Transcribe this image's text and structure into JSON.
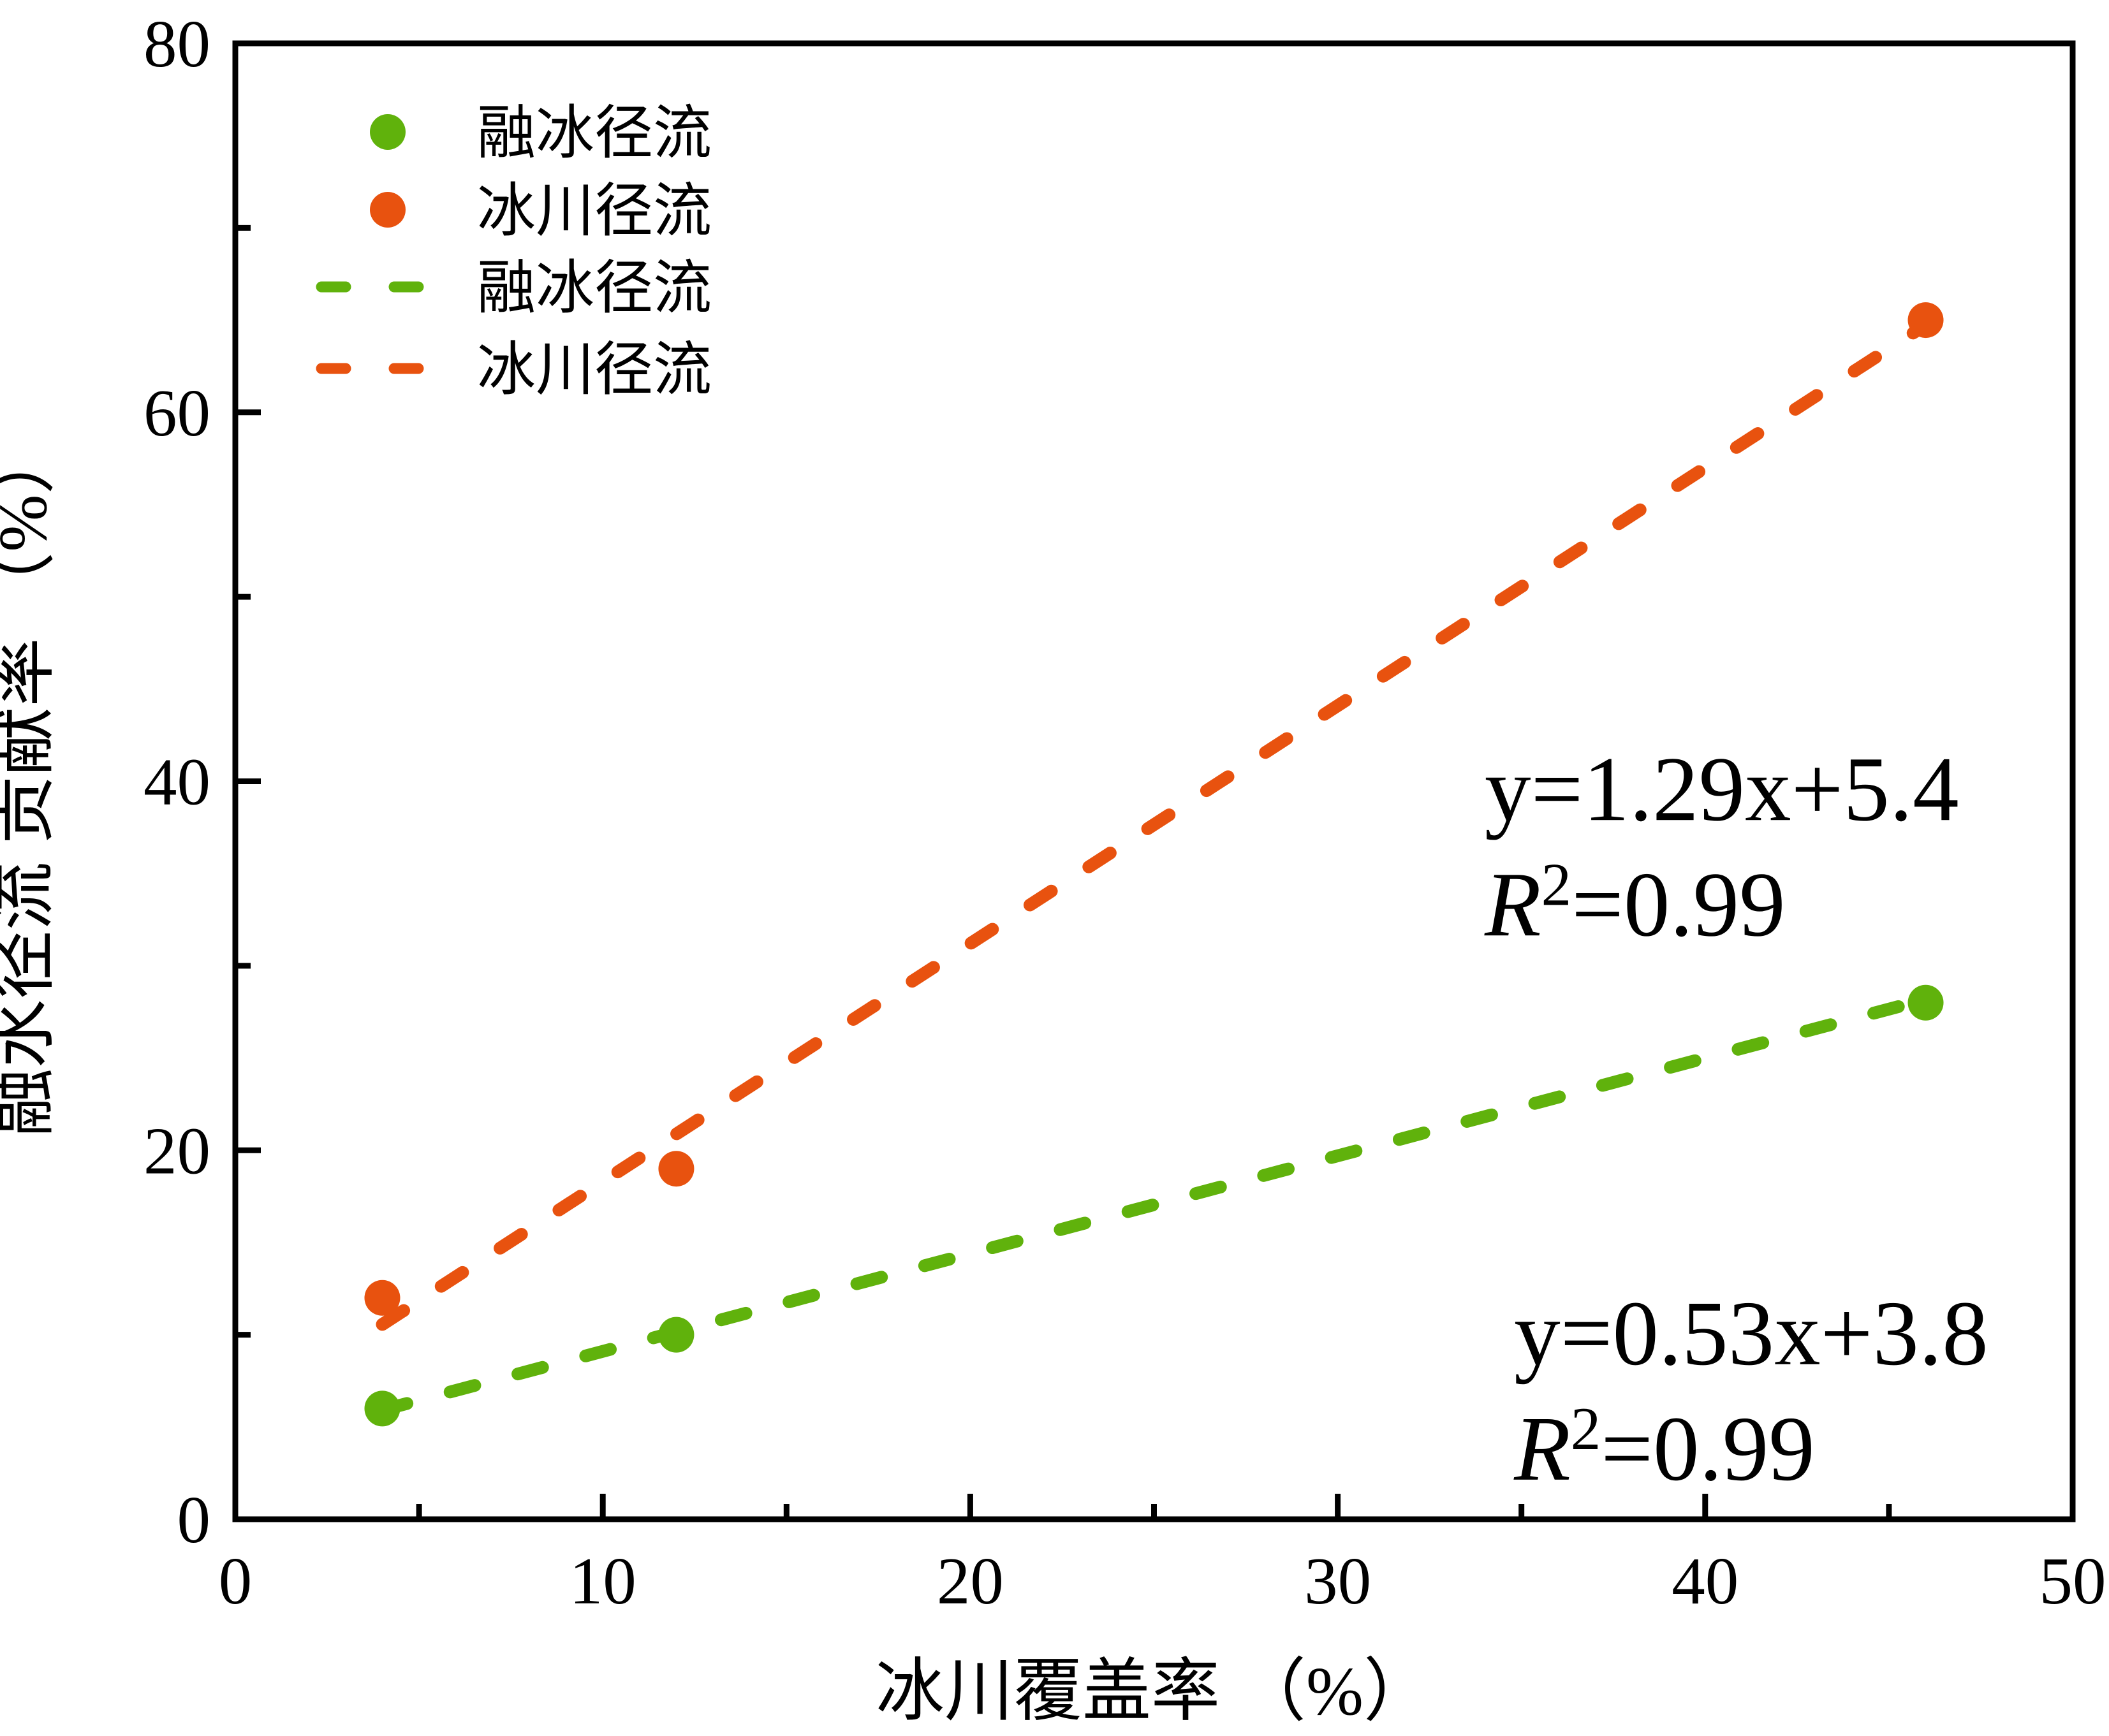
{
  "figure_kind": "scatter-with-trendlines",
  "chart_data": {
    "type": "scatter",
    "title": "",
    "xlabel": "冰川覆盖率 （%）",
    "ylabel": "融水径流 贡献率 （%）",
    "xlim": [
      0,
      50
    ],
    "ylim": [
      0,
      80
    ],
    "x_ticks_major": [
      0,
      10,
      20,
      30,
      40,
      50
    ],
    "x_ticks_minor": [
      5,
      15,
      25,
      35,
      45
    ],
    "y_ticks_major": [
      0,
      20,
      40,
      60,
      80
    ],
    "y_ticks_minor": [
      10,
      30,
      50,
      70
    ],
    "grid": false,
    "background": "#FFFFFF",
    "axis_color": "#000000",
    "series": [
      {
        "name": "融冰径流",
        "marker": "circle",
        "color": "#60B20C",
        "points": [
          [
            4,
            6
          ],
          [
            12,
            10
          ],
          [
            46,
            28
          ]
        ],
        "trendline": {
          "style": "dashed",
          "slope": 0.53,
          "intercept": 3.8,
          "x_start": 4,
          "x_end": 46,
          "equation": "y=0.53x+3.8",
          "r_squared": "0.99"
        }
      },
      {
        "name": "冰川径流",
        "marker": "circle",
        "color": "#E8520F",
        "points": [
          [
            4,
            12
          ],
          [
            12,
            19
          ],
          [
            46,
            65
          ]
        ],
        "trendline": {
          "style": "dashed",
          "slope": 1.29,
          "intercept": 5.4,
          "x_start": 4,
          "x_end": 46,
          "equation": "y=1.29x+5.4",
          "r_squared": "0.99"
        }
      }
    ],
    "legend": {
      "position": "top-left-inside",
      "items": [
        {
          "label": "融冰径流",
          "type": "dot",
          "color": "#60B20C"
        },
        {
          "label": "冰川径流",
          "type": "dot",
          "color": "#E8520F"
        },
        {
          "label": "融冰径流",
          "type": "dash",
          "color": "#60B20C"
        },
        {
          "label": "冰川径流",
          "type": "dash",
          "color": "#E8520F"
        }
      ]
    },
    "annotations": [
      {
        "equation": "y=1.29x+5.4",
        "r_base": "R",
        "r_sup": "2",
        "r_rest": "=0.99",
        "anchor": {
          "x": 34.0,
          "y": 37.9
        }
      },
      {
        "equation": "y=0.53x+3.8",
        "r_base": "R",
        "r_sup": "2",
        "r_rest": "=0.99",
        "anchor": {
          "x": 34.8,
          "y": 8.4
        }
      }
    ]
  }
}
